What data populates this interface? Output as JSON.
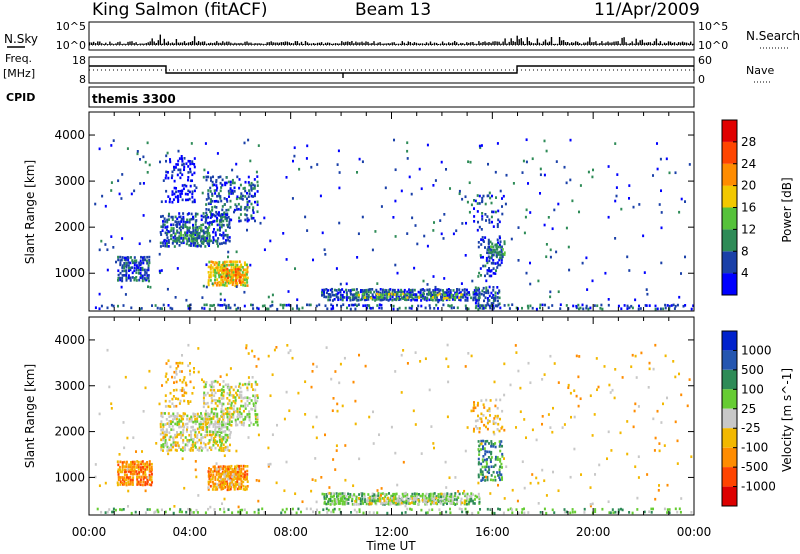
{
  "header": {
    "station": "King Salmon (fitACF)",
    "beam": "Beam 13",
    "date": "11/Apr/2009"
  },
  "summary": {
    "nsky_label": "N.Sky",
    "nsearch_label": "N.Search",
    "count_tick_high": "10^5",
    "count_tick_low": "10^0",
    "freq_label_line1": "Freq.",
    "freq_label_line2": "[MHz]",
    "freq_tick_high": "18",
    "freq_tick_low": "8",
    "nave_label": "Nave",
    "nave_tick_high": "60",
    "nave_tick_low": "0",
    "cpid_label": "CPID",
    "cpid_value": "themis 3300"
  },
  "x_axis": {
    "label": "Time UT",
    "ticks": [
      "00:00",
      "04:00",
      "08:00",
      "12:00",
      "16:00",
      "20:00",
      "00:00"
    ]
  },
  "colors": {
    "scale": [
      "#0000ff",
      "#1a40a8",
      "#2e8b57",
      "#56c23a",
      "#f2c800",
      "#ff8c00",
      "#ff4500",
      "#e00000"
    ],
    "velocity_scale": [
      "#0022cc",
      "#2456b0",
      "#2e8b57",
      "#66cc33",
      "#c8c8c8",
      "#f2b800",
      "#ff8c00",
      "#ff4400",
      "#dd0000"
    ]
  },
  "chart_data": [
    {
      "type": "heatmap",
      "title": "",
      "xlabel": "Time UT",
      "ylabel": "Slant Range [km]",
      "xlim": [
        0,
        24
      ],
      "ylim": [
        180,
        4500
      ],
      "y_ticks": [
        "1000",
        "2000",
        "3000",
        "4000"
      ],
      "y_values": [
        1000,
        2000,
        3000,
        4000
      ],
      "colorbar": {
        "label": "Power [dB]",
        "ticks": [
          "4",
          "8",
          "12",
          "16",
          "20",
          "24",
          "28"
        ],
        "range": [
          0,
          30
        ]
      },
      "regions": [
        {
          "t0": 1.1,
          "t1": 2.4,
          "r0": 800,
          "r1": 1350,
          "level": 1,
          "density": 0.75
        },
        {
          "t0": 4.7,
          "t1": 6.3,
          "r0": 700,
          "r1": 1250,
          "level": 4,
          "density": 0.85
        },
        {
          "t0": 5.2,
          "t1": 6.0,
          "r0": 750,
          "r1": 1150,
          "level": 5,
          "density": 0.7
        },
        {
          "t0": 2.8,
          "t1": 5.6,
          "r0": 1550,
          "r1": 2300,
          "level": 1,
          "density": 0.55
        },
        {
          "t0": 3.2,
          "t1": 4.8,
          "r0": 1650,
          "r1": 2000,
          "level": 2,
          "density": 0.55
        },
        {
          "t0": 4.6,
          "t1": 6.7,
          "r0": 2100,
          "r1": 3100,
          "level": 1,
          "density": 0.4
        },
        {
          "t0": 3.0,
          "t1": 4.2,
          "r0": 2500,
          "r1": 3500,
          "level": 0,
          "density": 0.3
        },
        {
          "t0": 9.2,
          "t1": 15.5,
          "r0": 380,
          "r1": 650,
          "level": 1,
          "density": 0.8
        },
        {
          "t0": 10.5,
          "t1": 14.8,
          "r0": 420,
          "r1": 560,
          "level": 3,
          "density": 0.6
        },
        {
          "t0": 15.3,
          "t1": 16.3,
          "r0": 250,
          "r1": 700,
          "level": 1,
          "density": 0.6
        },
        {
          "t0": 15.4,
          "t1": 16.4,
          "r0": 900,
          "r1": 1800,
          "level": 1,
          "density": 0.35
        },
        {
          "t0": 15.8,
          "t1": 16.5,
          "r0": 1300,
          "r1": 1700,
          "level": 2,
          "density": 0.5
        },
        {
          "t0": 15.2,
          "t1": 16.4,
          "r0": 1900,
          "r1": 2700,
          "level": 1,
          "density": 0.22
        },
        {
          "t0": 0.2,
          "t1": 24,
          "r0": 190,
          "r1": 320,
          "level": 1,
          "density": 0.35
        },
        {
          "t0": 0.2,
          "t1": 24,
          "r0": 320,
          "r1": 3900,
          "level": 1,
          "density": 0.018
        }
      ]
    },
    {
      "type": "heatmap",
      "title": "",
      "xlabel": "Time UT",
      "ylabel": "Slant Range [km]",
      "xlim": [
        0,
        24
      ],
      "ylim": [
        180,
        4500
      ],
      "y_ticks": [
        "1000",
        "2000",
        "3000",
        "4000"
      ],
      "y_values": [
        1000,
        2000,
        3000,
        4000
      ],
      "colorbar": {
        "label": "Velocity [m s^-1]",
        "ticks": [
          "1000",
          "500",
          "100",
          "25",
          "-25",
          "-100",
          "-500",
          "-1000"
        ],
        "range": [
          -1000,
          1000
        ]
      },
      "regions": [
        {
          "t0": 1.1,
          "t1": 2.5,
          "r0": 800,
          "r1": 1350,
          "level": 6,
          "density": 0.85
        },
        {
          "t0": 4.7,
          "t1": 6.3,
          "r0": 700,
          "r1": 1250,
          "level": 6,
          "density": 0.85
        },
        {
          "t0": 5.0,
          "t1": 6.0,
          "r0": 750,
          "r1": 1200,
          "level": 5,
          "density": 0.55
        },
        {
          "t0": 2.8,
          "t1": 5.6,
          "r0": 1550,
          "r1": 2400,
          "level": 4,
          "density": 0.6
        },
        {
          "t0": 4.5,
          "t1": 6.7,
          "r0": 2100,
          "r1": 3100,
          "level": 4,
          "density": 0.45
        },
        {
          "t0": 3.0,
          "t1": 4.2,
          "r0": 2500,
          "r1": 3500,
          "level": 5,
          "density": 0.25
        },
        {
          "t0": 9.2,
          "t1": 15.5,
          "r0": 380,
          "r1": 650,
          "level": 3,
          "density": 0.75
        },
        {
          "t0": 11.0,
          "t1": 15.0,
          "r0": 400,
          "r1": 560,
          "level": 4,
          "density": 0.55
        },
        {
          "t0": 15.4,
          "t1": 16.4,
          "r0": 900,
          "r1": 1800,
          "level": 2,
          "density": 0.45
        },
        {
          "t0": 15.2,
          "t1": 16.4,
          "r0": 1900,
          "r1": 2700,
          "level": 5,
          "density": 0.22
        },
        {
          "t0": 0.2,
          "t1": 24,
          "r0": 190,
          "r1": 320,
          "level": 3,
          "density": 0.3
        },
        {
          "t0": 0.2,
          "t1": 24,
          "r0": 320,
          "r1": 3900,
          "level": 5,
          "density": 0.018
        }
      ]
    }
  ]
}
